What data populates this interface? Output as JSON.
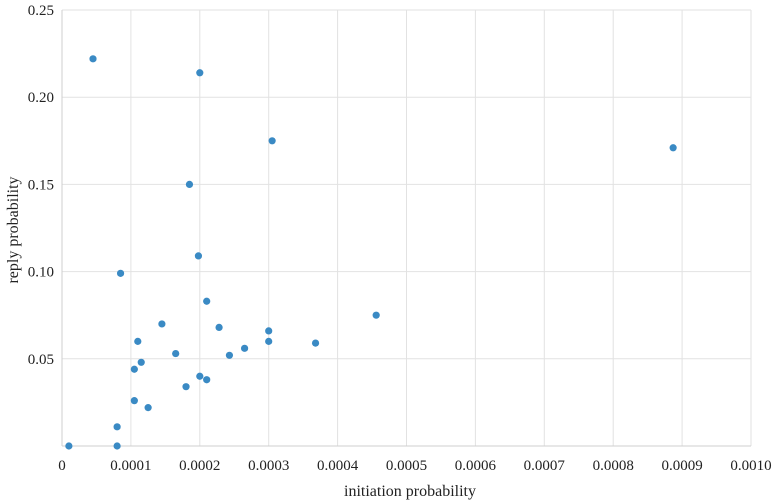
{
  "chart_data": {
    "type": "scatter",
    "xlabel": "initiation probability",
    "ylabel": "reply probability",
    "xlim": [
      0,
      0.001
    ],
    "ylim": [
      0,
      0.25
    ],
    "x_ticks": [
      "0",
      "0.0001",
      "0.0002",
      "0.0003",
      "0.0004",
      "0.0005",
      "0.0006",
      "0.0007",
      "0.0008",
      "0.0009",
      "0.0010"
    ],
    "y_ticks": [
      "0.05",
      "0.10",
      "0.15",
      "0.20",
      "0.25"
    ],
    "grid": true,
    "marker_color": "#3a8ac4",
    "gridline_color": "#e2e2e2",
    "series": [
      {
        "points": [
          {
            "x": 1e-05,
            "y": 0.0
          },
          {
            "x": 4.5e-05,
            "y": 0.222
          },
          {
            "x": 8e-05,
            "y": 0.011
          },
          {
            "x": 8e-05,
            "y": 0.0
          },
          {
            "x": 8.5e-05,
            "y": 0.099
          },
          {
            "x": 0.000105,
            "y": 0.026
          },
          {
            "x": 0.000105,
            "y": 0.044
          },
          {
            "x": 0.00011,
            "y": 0.06
          },
          {
            "x": 0.000115,
            "y": 0.048
          },
          {
            "x": 0.000125,
            "y": 0.022
          },
          {
            "x": 0.000145,
            "y": 0.07
          },
          {
            "x": 0.000165,
            "y": 0.053
          },
          {
            "x": 0.00018,
            "y": 0.034
          },
          {
            "x": 0.000185,
            "y": 0.15
          },
          {
            "x": 0.000198,
            "y": 0.109
          },
          {
            "x": 0.0002,
            "y": 0.04
          },
          {
            "x": 0.0002,
            "y": 0.214
          },
          {
            "x": 0.00021,
            "y": 0.083
          },
          {
            "x": 0.00021,
            "y": 0.038
          },
          {
            "x": 0.000228,
            "y": 0.068
          },
          {
            "x": 0.000243,
            "y": 0.052
          },
          {
            "x": 0.000265,
            "y": 0.056
          },
          {
            "x": 0.0003,
            "y": 0.066
          },
          {
            "x": 0.0003,
            "y": 0.06
          },
          {
            "x": 0.000305,
            "y": 0.175
          },
          {
            "x": 0.000368,
            "y": 0.059
          },
          {
            "x": 0.000456,
            "y": 0.075
          },
          {
            "x": 0.000887,
            "y": 0.171
          }
        ]
      }
    ]
  }
}
